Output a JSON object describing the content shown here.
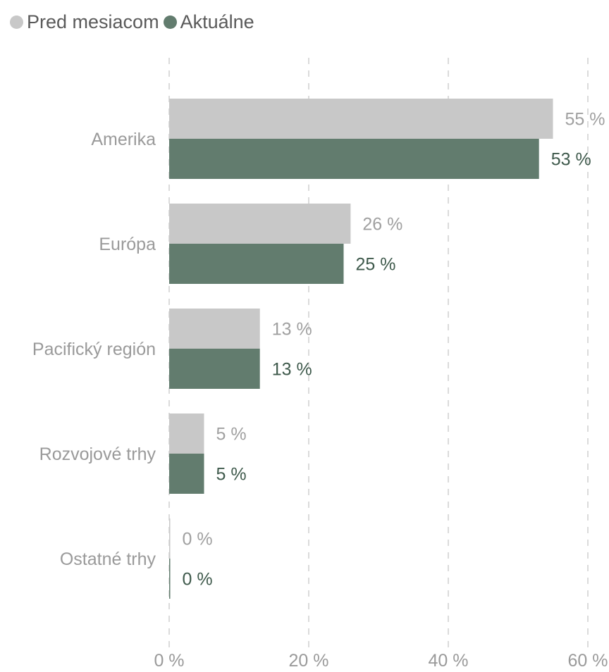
{
  "legend": {
    "previous_label": "Pred mesiacom",
    "current_label": "Aktuálne"
  },
  "colors": {
    "previous": "#c8c8c8",
    "current": "#627c6e",
    "previous_text": "#a0a0a0",
    "current_text": "#3f5a4c",
    "axis_text": "#9a9a9a",
    "grid": "#cfcfcf"
  },
  "chart_data": {
    "type": "bar",
    "orientation": "horizontal",
    "categories": [
      "Amerika",
      "Európa",
      "Pacifický región",
      "Rozvojové trhy",
      "Ostatné trhy"
    ],
    "series": [
      {
        "name": "Pred mesiacom",
        "values": [
          55,
          26,
          13,
          5,
          0
        ],
        "labels": [
          "55 %",
          "26 %",
          "13 %",
          "5 %",
          "0 %"
        ]
      },
      {
        "name": "Aktuálne",
        "values": [
          53,
          25,
          13,
          5,
          0
        ],
        "labels": [
          "53 %",
          "25 %",
          "13 %",
          "5 %",
          "0 %"
        ]
      }
    ],
    "xlim": [
      0,
      60
    ],
    "xticks": [
      0,
      20,
      40,
      60
    ],
    "xtick_labels": [
      "0 %",
      "20 %",
      "40 %",
      "60 %"
    ],
    "grid": "vertical dashed",
    "legend_position": "top-left"
  }
}
